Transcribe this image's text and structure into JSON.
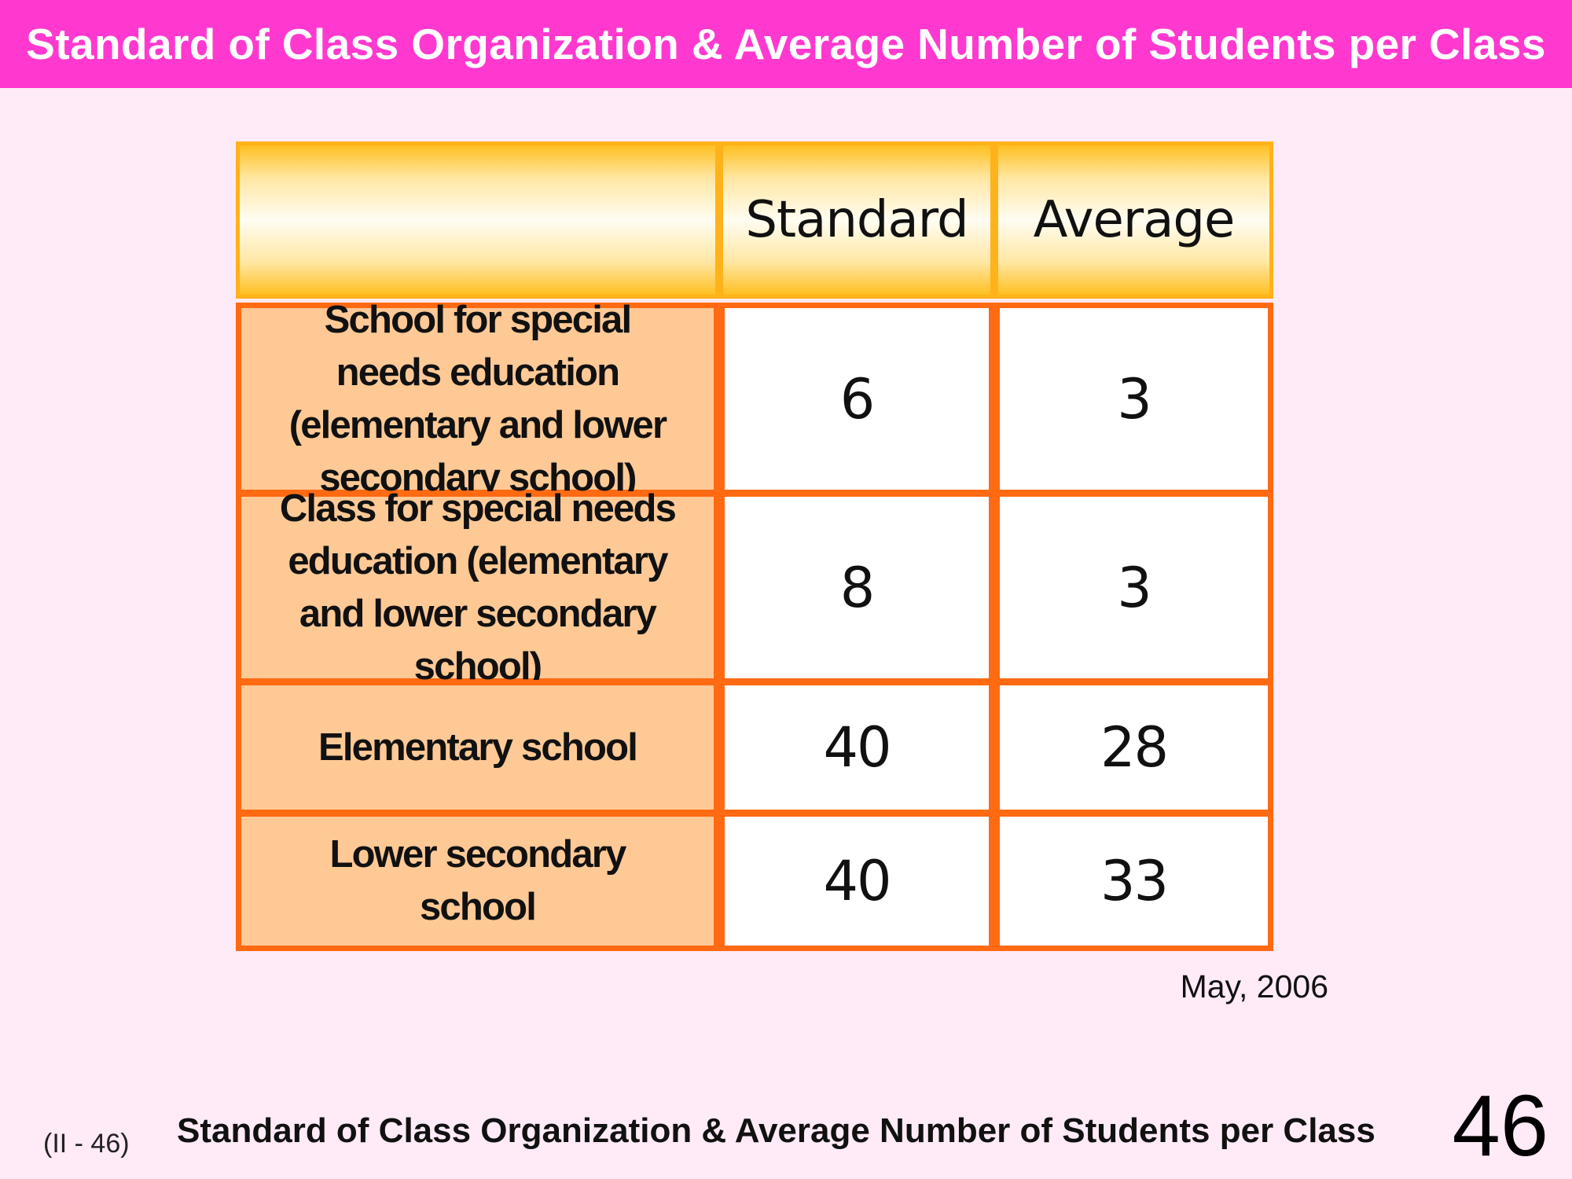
{
  "header": {
    "title": "Standard of Class Organization & Average Number of Students per Class"
  },
  "chart_data": {
    "type": "table",
    "columns": [
      "",
      "Standard",
      "Average"
    ],
    "rows": [
      {
        "label": "School for special needs education (elementary and lower secondary school)",
        "standard": 6,
        "average": 3
      },
      {
        "label": "Class for special needs education (elementary and lower secondary school)",
        "standard": 8,
        "average": 3
      },
      {
        "label": "Elementary school",
        "standard": 40,
        "average": 28
      },
      {
        "label": "Lower secondary school",
        "standard": 40,
        "average": 33
      }
    ],
    "title": "Standard of Class Organization & Average Number of Students per Class",
    "note": "May, 2006"
  },
  "footer": {
    "code": "(II - 46)",
    "title": "Standard of Class Organization & Average Number of Students per Class",
    "page_number": "46"
  },
  "colors": {
    "title_bar": "#ff39cf",
    "background": "#ffeaf7",
    "table_border": "#ff6a12",
    "label_fill": "#ffc996",
    "header_border": "#ffb21a"
  }
}
